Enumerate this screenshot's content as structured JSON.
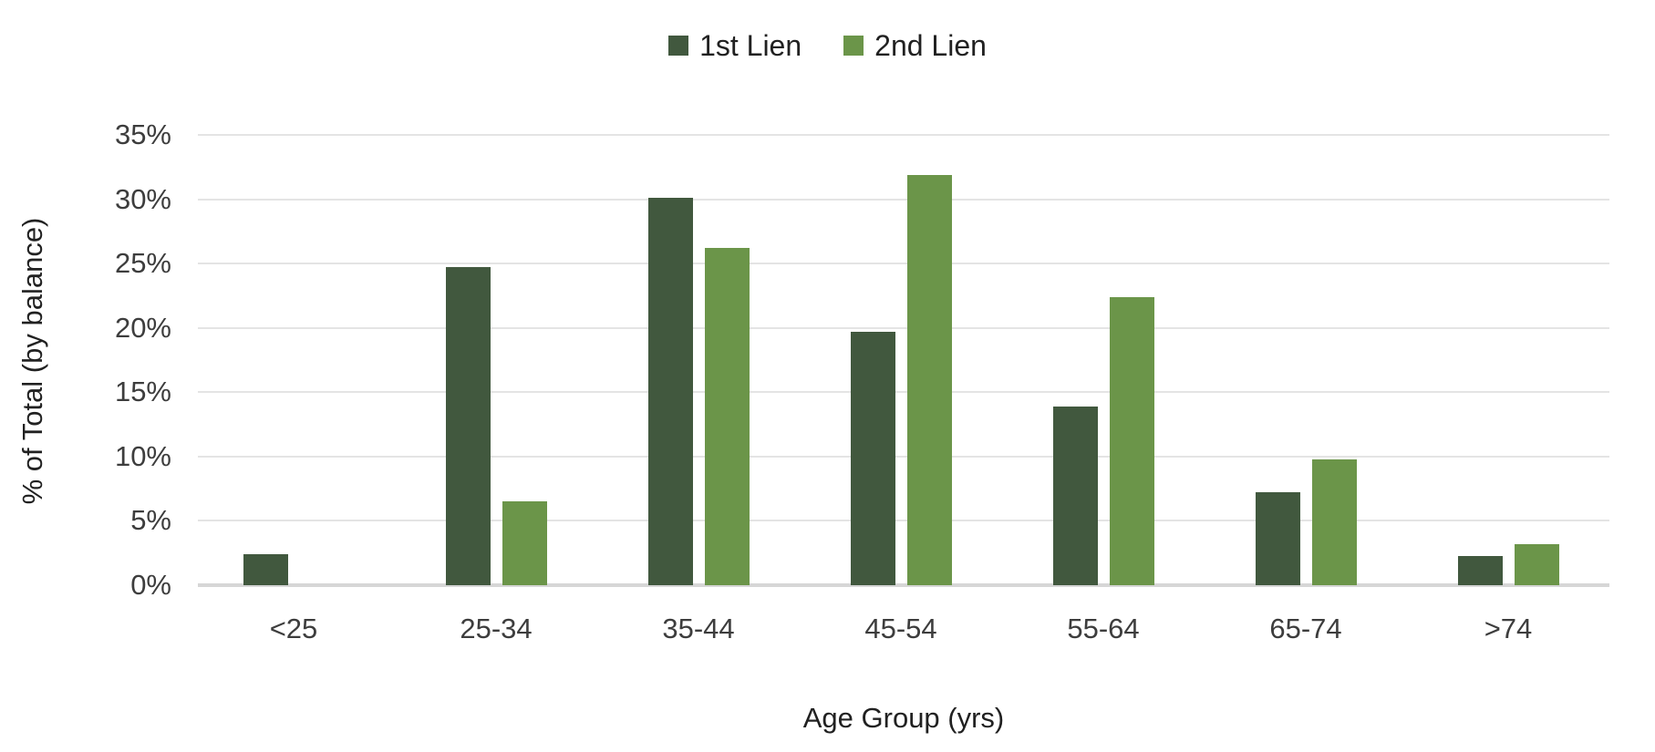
{
  "chart_data": {
    "type": "bar",
    "title": "",
    "categories": [
      "<25",
      "25-34",
      "35-44",
      "45-54",
      "55-64",
      "65-74",
      ">74"
    ],
    "series": [
      {
        "name": "1st Lien",
        "color": "#41583e",
        "values": [
          2.4,
          24.7,
          30.1,
          19.7,
          13.9,
          7.2,
          2.3
        ]
      },
      {
        "name": "2nd Lien",
        "color": "#6b9549",
        "values": [
          0,
          6.5,
          26.2,
          31.9,
          22.4,
          9.8,
          3.2
        ]
      }
    ],
    "xlabel": "Age Group (yrs)",
    "ylabel": "% of Total (by balance)",
    "ylim": [
      0,
      35
    ],
    "ytick_step": 5,
    "ytick_labels": [
      "0%",
      "5%",
      "10%",
      "15%",
      "20%",
      "25%",
      "30%",
      "35%"
    ],
    "grid": true,
    "legend_position": "top-center"
  }
}
